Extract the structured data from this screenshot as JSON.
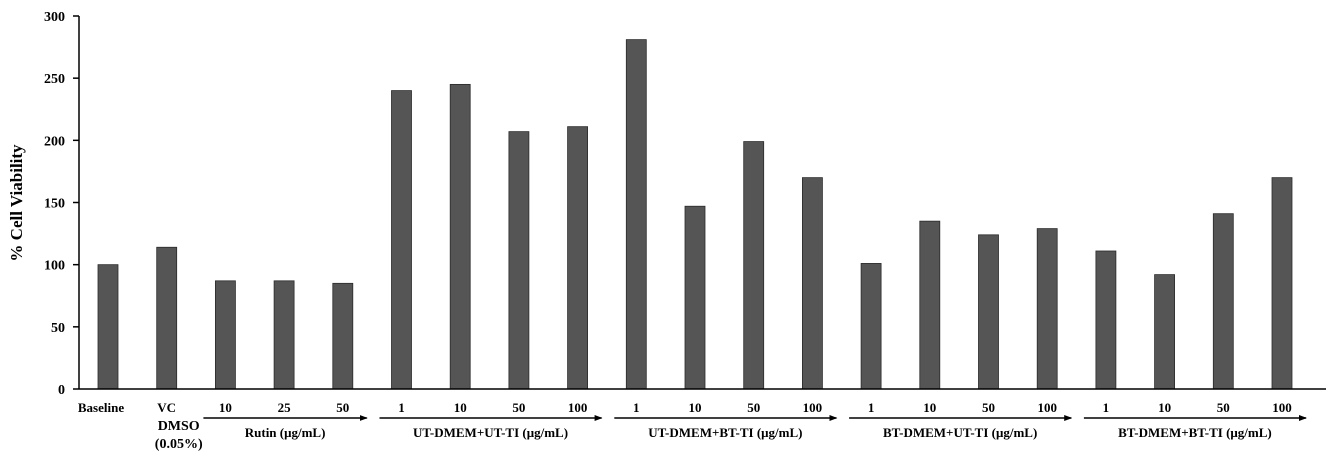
{
  "chart_data": {
    "type": "bar",
    "ylabel": "% Cell Viability",
    "xlabel": "",
    "ylim": [
      0,
      300
    ],
    "yticks": [
      "0",
      "50",
      "100",
      "150",
      "200",
      "250",
      "300"
    ],
    "grid": false,
    "legend": "none",
    "bar_color": "#555555",
    "categories": [
      "Baseline",
      "VC",
      "10",
      "25",
      "50",
      "1",
      "10",
      "50",
      "100",
      "1",
      "10",
      "50",
      "100",
      "1",
      "10",
      "50",
      "100",
      "1",
      "10",
      "50",
      "100"
    ],
    "values": [
      100,
      114,
      87,
      87,
      85,
      240,
      245,
      207,
      211,
      281,
      147,
      199,
      170,
      101,
      135,
      124,
      129,
      111,
      92,
      141,
      170
    ],
    "vc_sublabel": [
      "DMSO",
      "(0.05%)"
    ],
    "groups": [
      {
        "label": "Rutin  (μg/mL)",
        "start": 2,
        "end": 4
      },
      {
        "label": "UT-DMEM+UT-TI  (μg/mL)",
        "start": 5,
        "end": 8
      },
      {
        "label": "UT-DMEM+BT-TI  (μg/mL)",
        "start": 9,
        "end": 12
      },
      {
        "label": "BT-DMEM+UT-TI  (μg/mL)",
        "start": 13,
        "end": 16
      },
      {
        "label": "BT-DMEM+BT-TI  (μg/mL)",
        "start": 17,
        "end": 20
      }
    ]
  }
}
